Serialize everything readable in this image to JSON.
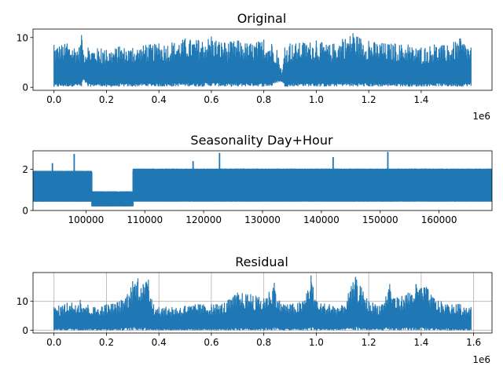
{
  "chart_data": [
    {
      "type": "line",
      "title": "Original",
      "xlabel": "",
      "ylabel": "",
      "offset_label": "1e6",
      "xlim": [
        -0.08,
        1.67
      ],
      "ylim": [
        -0.6,
        11.7
      ],
      "xticks": [
        0.0,
        0.2,
        0.4,
        0.6,
        0.8,
        1.0,
        1.2,
        1.4
      ],
      "xtick_labels": [
        "0.0",
        "0.2",
        "0.4",
        "0.6",
        "0.8",
        "1.0",
        "1.2",
        "1.4"
      ],
      "yticks": [
        0,
        10
      ],
      "ytick_labels": [
        "0",
        "10"
      ],
      "grid": false,
      "color": "#1f77b4",
      "x_range": [
        0.0,
        1.59
      ],
      "envelope_x": [
        0.0,
        0.05,
        0.1,
        0.105,
        0.11,
        0.13,
        0.18,
        0.2,
        0.25,
        0.3,
        0.35,
        0.4,
        0.45,
        0.5,
        0.55,
        0.6,
        0.65,
        0.7,
        0.75,
        0.8,
        0.83,
        0.85,
        0.87,
        0.88,
        0.9,
        0.95,
        1.0,
        1.05,
        1.1,
        1.14,
        1.2,
        1.25,
        1.3,
        1.35,
        1.38,
        1.4,
        1.45,
        1.5,
        1.55,
        1.59
      ],
      "envelope_max": [
        8.5,
        8.8,
        8.2,
        10.5,
        7.5,
        8.0,
        7.8,
        7.5,
        8.2,
        7.9,
        8.5,
        8.8,
        9.0,
        9.8,
        9.5,
        10.2,
        9.0,
        9.4,
        8.8,
        9.6,
        8.7,
        7.5,
        3.0,
        8.0,
        8.8,
        9.0,
        9.4,
        8.5,
        9.7,
        10.9,
        9.3,
        8.9,
        8.8,
        8.6,
        7.8,
        8.0,
        8.6,
        8.4,
        9.8,
        8.0
      ],
      "envelope_min": [
        0.1,
        0.2,
        0.3,
        0.2,
        1.5,
        0.2,
        0.3,
        0.1,
        0.2,
        0.2,
        0.3,
        0.2,
        0.2,
        0.3,
        0.2,
        0.3,
        0.2,
        0.2,
        0.3,
        0.2,
        0.3,
        1.0,
        1.2,
        0.2,
        0.2,
        0.3,
        0.2,
        0.2,
        0.3,
        0.2,
        0.2,
        0.2,
        0.3,
        0.2,
        0.2,
        0.2,
        0.3,
        0.2,
        0.2,
        0.3
      ]
    },
    {
      "type": "line",
      "title": "Seasonality Day+Hour",
      "xlabel": "",
      "ylabel": "",
      "xlim": [
        91000,
        169000
      ],
      "ylim": [
        0,
        2.9
      ],
      "xticks": [
        100000,
        110000,
        120000,
        130000,
        140000,
        150000,
        160000
      ],
      "xtick_labels": [
        "100000",
        "110000",
        "120000",
        "130000",
        "140000",
        "150000",
        "160000"
      ],
      "yticks": [
        0,
        2
      ],
      "ytick_labels": [
        "0",
        "2"
      ],
      "grid": false,
      "color": "#1f77b4",
      "period_hours": 24,
      "segments": [
        {
          "x_start": 91000,
          "x_end": 101000,
          "low": 0.4,
          "high": 1.9
        },
        {
          "x_start": 101000,
          "x_end": 108000,
          "low": 0.2,
          "high": 0.9
        },
        {
          "x_start": 108000,
          "x_end": 169000,
          "low": 0.4,
          "high": 2.0
        }
      ],
      "peaks": [
        {
          "x": 94300,
          "y": 2.3
        },
        {
          "x": 98000,
          "y": 2.75
        },
        {
          "x": 118200,
          "y": 2.4
        },
        {
          "x": 122700,
          "y": 2.8
        },
        {
          "x": 142000,
          "y": 2.6
        },
        {
          "x": 151300,
          "y": 2.85
        }
      ]
    },
    {
      "type": "line",
      "title": "Residual",
      "xlabel": "",
      "ylabel": "",
      "offset_label": "1e6",
      "xlim": [
        -0.08,
        1.67
      ],
      "ylim": [
        -1.0,
        20.0
      ],
      "xticks": [
        0.0,
        0.2,
        0.4,
        0.6,
        0.8,
        1.0,
        1.2,
        1.4,
        1.6
      ],
      "xtick_labels": [
        "0.0",
        "0.2",
        "0.4",
        "0.6",
        "0.8",
        "1.0",
        "1.2",
        "1.4",
        "1.6"
      ],
      "yticks": [
        0,
        10
      ],
      "ytick_labels": [
        "0",
        "10"
      ],
      "grid": true,
      "color": "#1f77b4",
      "x_range": [
        0.0,
        1.59
      ],
      "envelope_x": [
        0.0,
        0.05,
        0.1,
        0.15,
        0.2,
        0.25,
        0.28,
        0.3,
        0.32,
        0.34,
        0.36,
        0.38,
        0.4,
        0.45,
        0.5,
        0.55,
        0.6,
        0.65,
        0.7,
        0.75,
        0.8,
        0.84,
        0.86,
        0.9,
        0.95,
        0.98,
        1.0,
        1.05,
        1.1,
        1.15,
        1.2,
        1.25,
        1.28,
        1.3,
        1.35,
        1.38,
        1.42,
        1.45,
        1.5,
        1.55,
        1.59
      ],
      "envelope_max": [
        8.0,
        9.5,
        10.5,
        8.0,
        9.0,
        10.0,
        12.5,
        17.0,
        18.0,
        16.0,
        17.5,
        9.0,
        8.0,
        8.0,
        8.5,
        9.0,
        9.0,
        9.5,
        13.0,
        12.5,
        11.0,
        16.5,
        10.0,
        9.0,
        10.0,
        19.0,
        10.0,
        9.0,
        8.5,
        18.5,
        10.0,
        9.0,
        16.0,
        11.0,
        13.0,
        16.0,
        15.0,
        11.0,
        9.0,
        9.0,
        8.0
      ],
      "envelope_min": [
        0.0,
        0.0,
        0.0,
        0.0,
        0.0,
        0.0,
        0.0,
        0.0,
        0.0,
        0.0,
        0.0,
        0.0,
        0.0,
        0.0,
        0.0,
        0.0,
        0.0,
        0.0,
        0.0,
        0.0,
        0.0,
        0.0,
        0.0,
        0.0,
        0.0,
        0.0,
        0.0,
        0.0,
        0.0,
        0.0,
        0.0,
        0.0,
        0.0,
        0.0,
        0.0,
        0.0,
        0.0,
        0.0,
        0.0,
        0.0,
        0.0
      ]
    }
  ]
}
